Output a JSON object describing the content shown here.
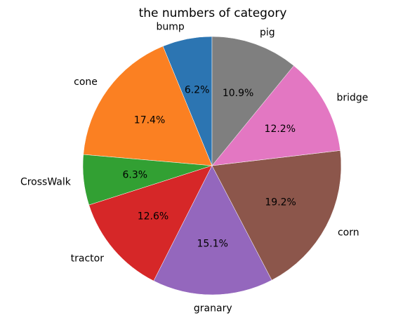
{
  "chart_data": {
    "type": "pie",
    "title": "the numbers of category",
    "start_angle_deg": 90,
    "direction": "counterclockwise",
    "slices": [
      {
        "label": "bump",
        "value": 6.2,
        "display": "6.2%",
        "color": "#2c75b2"
      },
      {
        "label": "cone",
        "value": 17.4,
        "display": "17.4%",
        "color": "#fb8022"
      },
      {
        "label": "CrossWalk",
        "value": 6.3,
        "display": "6.3%",
        "color": "#32a033"
      },
      {
        "label": "tractor",
        "value": 12.6,
        "display": "12.6%",
        "color": "#d62728"
      },
      {
        "label": "granary",
        "value": 15.1,
        "display": "15.1%",
        "color": "#9467bd"
      },
      {
        "label": "corn",
        "value": 19.2,
        "display": "19.2%",
        "color": "#8c564b"
      },
      {
        "label": "bridge",
        "value": 12.2,
        "display": "12.2%",
        "color": "#e377c2"
      },
      {
        "label": "pig",
        "value": 10.9,
        "display": "10.9%",
        "color": "#7f7f7f"
      }
    ]
  }
}
